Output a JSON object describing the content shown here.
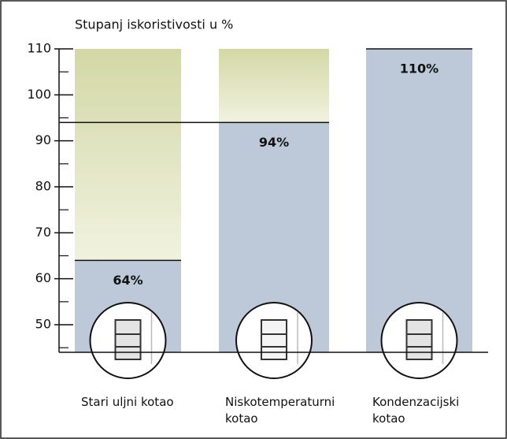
{
  "chart_data": {
    "type": "bar",
    "title": "Stupanj iskoristivosti u %",
    "categories": [
      "Stari uljni kotao",
      "Niskotemperaturni kotao",
      "Kondenzacijski kotao"
    ],
    "values": [
      64,
      94,
      110
    ],
    "value_labels": [
      "64%",
      "94%",
      "110%"
    ],
    "color": "#bdc9d9",
    "ylim": [
      44,
      110
    ],
    "yticks": [
      50,
      60,
      70,
      80,
      90,
      100,
      110
    ],
    "minor_yticks": [
      45,
      55,
      65,
      75,
      85,
      95,
      105
    ]
  }
}
